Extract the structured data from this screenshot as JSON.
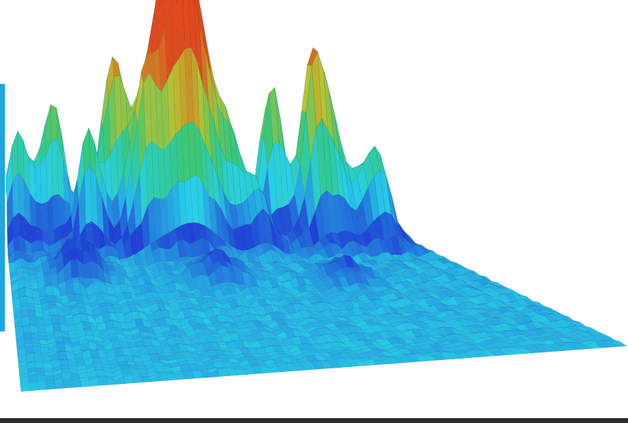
{
  "image": {
    "subject": "surface-mesh-landscape",
    "colors": {
      "background": "#ffffff",
      "accent_bar": "#1ea7e1",
      "bottom_bar": "#2b2b2b",
      "low": "#1f3fd6",
      "mid_low": "#28d0e8",
      "mid": "#36c879",
      "mid_high": "#b9c232",
      "high": "#e04a1c"
    }
  }
}
